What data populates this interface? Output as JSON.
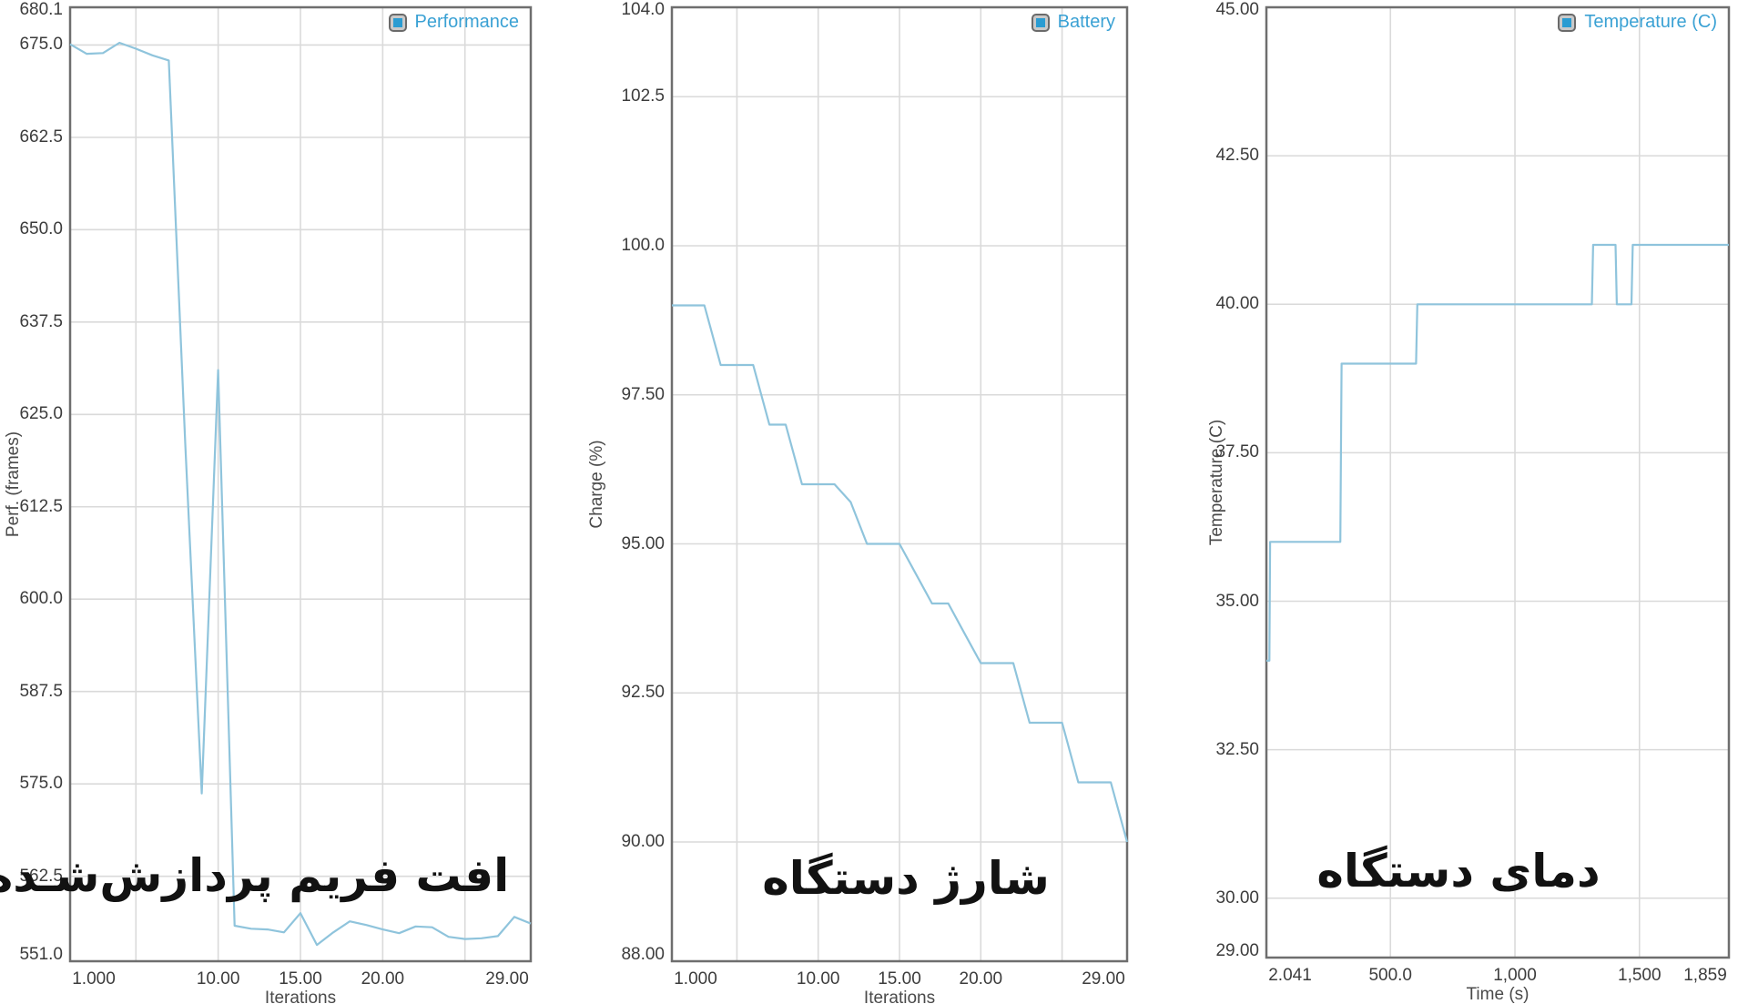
{
  "colors": {
    "line": "#8fc4dc",
    "legend_text": "#3aa1d4",
    "legend_swatch_fill": "#2a9cd2",
    "grid": "#dadada",
    "plot_border": "#6e6e6e",
    "tick_text": "#3c3c3c",
    "overlay_text": "#121212"
  },
  "chart_data": [
    {
      "type": "line",
      "id": "performance",
      "legend": "Performance",
      "xlabel": "Iterations",
      "ylabel": "Perf. (frames)",
      "overlay_caption": "افت فریم پردازش‌شـده",
      "xlim": [
        1,
        29
      ],
      "ylim": [
        551.0,
        680.1
      ],
      "grid": true,
      "legend_position": "top-right",
      "x_ticks": [
        {
          "v": 1,
          "label": "1.000"
        },
        {
          "v": 10,
          "label": "10.00"
        },
        {
          "v": 15,
          "label": "15.00"
        },
        {
          "v": 20,
          "label": "20.00"
        },
        {
          "v": 29,
          "label": "29.00"
        }
      ],
      "x_gridlines": [
        5,
        10,
        15,
        20,
        25
      ],
      "y_ticks": [
        {
          "v": 680.1,
          "label": "680.1",
          "grid": false
        },
        {
          "v": 675.0,
          "label": "675.0",
          "grid": true
        },
        {
          "v": 662.5,
          "label": "662.5",
          "grid": true
        },
        {
          "v": 650.0,
          "label": "650.0",
          "grid": true
        },
        {
          "v": 637.5,
          "label": "637.5",
          "grid": true
        },
        {
          "v": 625.0,
          "label": "625.0",
          "grid": true
        },
        {
          "v": 612.5,
          "label": "612.5",
          "grid": true
        },
        {
          "v": 600.0,
          "label": "600.0",
          "grid": true
        },
        {
          "v": 587.5,
          "label": "587.5",
          "grid": true
        },
        {
          "v": 575.0,
          "label": "575.0",
          "grid": true
        },
        {
          "v": 562.5,
          "label": "562.5",
          "grid": true
        },
        {
          "v": 551.0,
          "label": "551.0",
          "grid": false
        }
      ],
      "series": [
        {
          "name": "Performance",
          "x": [
            1,
            2,
            3,
            4,
            5,
            6,
            7,
            8,
            9,
            10,
            11,
            12,
            13,
            14,
            15,
            16,
            17,
            18,
            19,
            20,
            21,
            22,
            23,
            24,
            25,
            26,
            27,
            28,
            29
          ],
          "y": [
            675.1,
            673.8,
            673.9,
            675.3,
            674.5,
            673.6,
            672.9,
            621.0,
            573.7,
            631.0,
            555.8,
            555.4,
            555.3,
            554.9,
            557.5,
            553.2,
            554.9,
            556.4,
            555.9,
            555.3,
            554.8,
            555.7,
            555.6,
            554.3,
            554.0,
            554.1,
            554.4,
            557.0,
            556.1
          ]
        }
      ]
    },
    {
      "type": "line",
      "id": "battery",
      "legend": "Battery",
      "xlabel": "Iterations",
      "ylabel": "Charge (%)",
      "overlay_caption": "شارژ دستگاه",
      "xlim": [
        1,
        29
      ],
      "ylim": [
        88.0,
        104.0
      ],
      "grid": true,
      "legend_position": "top-right",
      "x_ticks": [
        {
          "v": 1,
          "label": "1.000"
        },
        {
          "v": 10,
          "label": "10.00"
        },
        {
          "v": 15,
          "label": "15.00"
        },
        {
          "v": 20,
          "label": "20.00"
        },
        {
          "v": 29,
          "label": "29.00"
        }
      ],
      "x_gridlines": [
        5,
        10,
        15,
        20,
        25
      ],
      "y_ticks": [
        {
          "v": 104.0,
          "label": "104.0",
          "grid": false
        },
        {
          "v": 102.5,
          "label": "102.5",
          "grid": true
        },
        {
          "v": 100.0,
          "label": "100.0",
          "grid": true
        },
        {
          "v": 97.5,
          "label": "97.50",
          "grid": true
        },
        {
          "v": 95.0,
          "label": "95.00",
          "grid": true
        },
        {
          "v": 92.5,
          "label": "92.50",
          "grid": true
        },
        {
          "v": 90.0,
          "label": "90.00",
          "grid": true
        },
        {
          "v": 88.0,
          "label": "88.00",
          "grid": false
        }
      ],
      "series": [
        {
          "name": "Battery",
          "x": [
            1,
            2,
            3,
            4,
            5,
            6,
            7,
            8,
            9,
            10,
            11,
            12,
            13,
            14,
            15,
            16,
            17,
            18,
            19,
            20,
            21,
            22,
            23,
            24,
            25,
            26,
            27,
            28,
            29
          ],
          "y": [
            99,
            99,
            99,
            98,
            98,
            98,
            97,
            97,
            96,
            96,
            96,
            95.7,
            95,
            95,
            95,
            94.5,
            94,
            94,
            93.5,
            93,
            93,
            93,
            92,
            92,
            92,
            91,
            91,
            91,
            90
          ]
        }
      ]
    },
    {
      "type": "line",
      "id": "temperature",
      "legend": "Temperature (C)",
      "xlabel": "Time (s)",
      "ylabel": "Temperature (C)",
      "overlay_caption": "دمای دستگاه",
      "xlim": [
        2.041,
        1859
      ],
      "ylim": [
        29.0,
        45.0
      ],
      "grid": true,
      "legend_position": "top-right",
      "x_ticks": [
        {
          "v": 2.041,
          "label": "2.041"
        },
        {
          "v": 500,
          "label": "500.0"
        },
        {
          "v": 1000,
          "label": "1,000"
        },
        {
          "v": 1500,
          "label": "1,500"
        },
        {
          "v": 1859,
          "label": "1,859"
        }
      ],
      "x_gridlines": [
        500,
        1000,
        1500
      ],
      "y_ticks": [
        {
          "v": 45.0,
          "label": "45.00",
          "grid": false
        },
        {
          "v": 42.5,
          "label": "42.50",
          "grid": true
        },
        {
          "v": 40.0,
          "label": "40.00",
          "grid": true
        },
        {
          "v": 37.5,
          "label": "37.50",
          "grid": true
        },
        {
          "v": 35.0,
          "label": "35.00",
          "grid": true
        },
        {
          "v": 32.5,
          "label": "32.50",
          "grid": true
        },
        {
          "v": 30.0,
          "label": "30.00",
          "grid": true
        },
        {
          "v": 29.0,
          "label": "29.00",
          "grid": false
        }
      ],
      "series": [
        {
          "name": "Temperature (C)",
          "x": [
            2,
            14,
            17,
            299,
            304,
            603,
            608,
            1309,
            1314,
            1404,
            1409,
            1468,
            1473,
            1859
          ],
          "y": [
            34,
            34,
            36,
            36,
            39,
            39,
            40,
            40,
            41,
            41,
            40,
            40,
            41,
            41
          ]
        }
      ]
    }
  ]
}
